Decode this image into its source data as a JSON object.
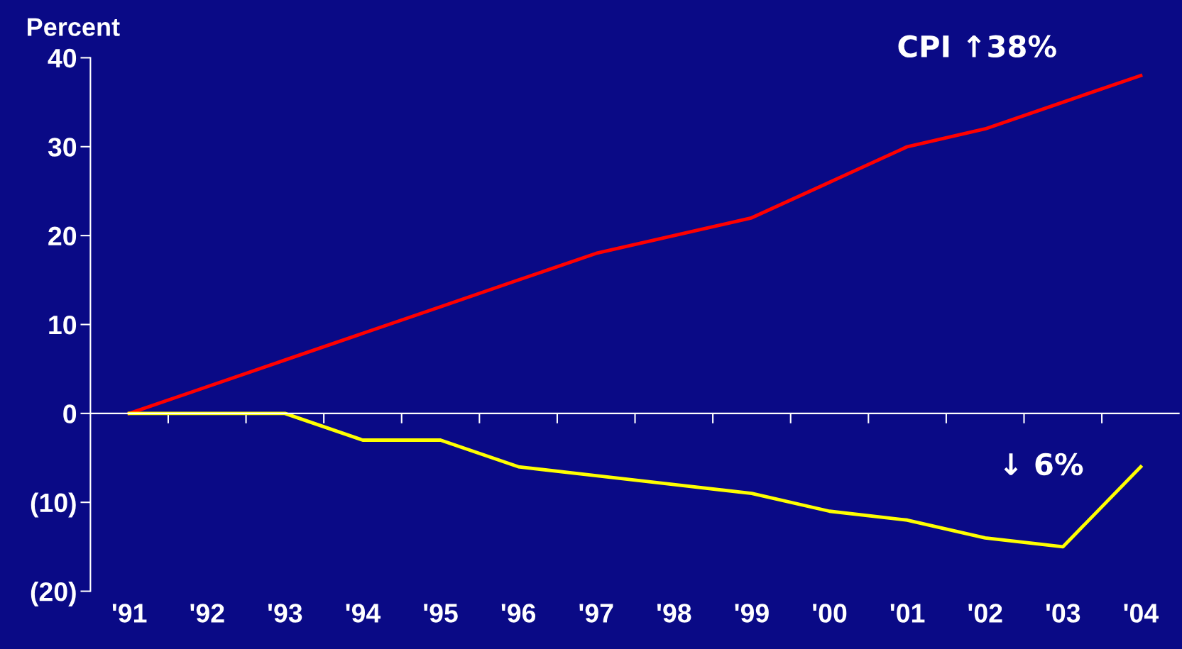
{
  "chart_data": {
    "type": "line",
    "ylabel": "Percent",
    "categories": [
      "'91",
      "'92",
      "'93",
      "'94",
      "'95",
      "'96",
      "'97",
      "'98",
      "'99",
      "'00",
      "'01",
      "'02",
      "'03",
      "'04"
    ],
    "series": [
      {
        "color": "#ff0000",
        "values": [
          0,
          3,
          6,
          9,
          12,
          15,
          18,
          20,
          22,
          26,
          30,
          32,
          35,
          38
        ]
      },
      {
        "color": "#ffff00",
        "values": [
          0,
          0,
          0,
          -3,
          -3,
          -6,
          -7,
          -8,
          -9,
          -11,
          -12,
          -14,
          -15,
          -6
        ]
      }
    ],
    "ylim": [
      -20,
      40
    ],
    "yticks": [
      {
        "value": -20,
        "label": "(20)"
      },
      {
        "value": -10,
        "label": "(10)"
      },
      0,
      10,
      20,
      30,
      40
    ],
    "annotations": [
      {
        "text": "CPI ↑38%",
        "x": "'04",
        "y": 38
      },
      {
        "text": "↓ 6%",
        "x": "'04",
        "y": -6
      }
    ],
    "ref_lines": [
      {
        "axis": "y",
        "value": 0,
        "color": "#ffffff"
      }
    ],
    "grid": false,
    "legend": false,
    "marker": "none",
    "line_style": "solid"
  }
}
